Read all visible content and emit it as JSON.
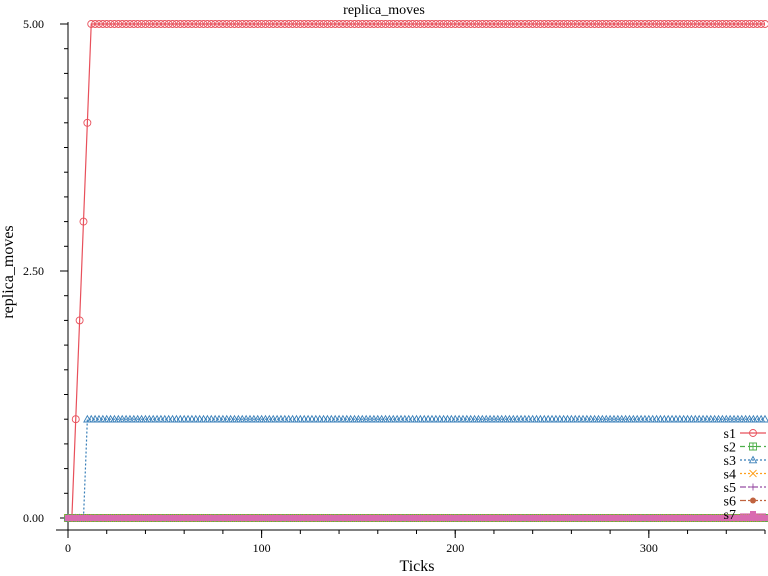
{
  "chart_data": {
    "type": "line",
    "title": "replica_moves",
    "xlabel": "Ticks",
    "ylabel": "replica_moves",
    "xlim": [
      0,
      360
    ],
    "ylim": [
      0,
      5
    ],
    "x_ticks": [
      {
        "value": 0,
        "label": "0"
      },
      {
        "value": 100,
        "label": "100"
      },
      {
        "value": 200,
        "label": "200"
      },
      {
        "value": 300,
        "label": "300"
      }
    ],
    "y_ticks": [
      {
        "value": 0,
        "label": "0.00"
      },
      {
        "value": 2.5,
        "label": "2.50"
      },
      {
        "value": 5,
        "label": "5.00"
      }
    ],
    "legend_position": "bottom-right",
    "series": [
      {
        "name": "s1",
        "color": "#e8505b",
        "marker": "circle",
        "dash": "solid",
        "points": [
          [
            0,
            0
          ],
          [
            2,
            0
          ],
          [
            4,
            1
          ],
          [
            6,
            2
          ],
          [
            8,
            3
          ],
          [
            10,
            4
          ],
          [
            12,
            5
          ],
          [
            360,
            5
          ]
        ]
      },
      {
        "name": "s2",
        "color": "#4daf4a",
        "marker": "square-plus",
        "dash": "dashed",
        "points": [
          [
            0,
            0
          ],
          [
            360,
            0
          ]
        ]
      },
      {
        "name": "s3",
        "color": "#377eb8",
        "marker": "triangle",
        "dash": "dotted",
        "points": [
          [
            0,
            0
          ],
          [
            8,
            0
          ],
          [
            10,
            1
          ],
          [
            360,
            1
          ]
        ]
      },
      {
        "name": "s4",
        "color": "#ff9f1c",
        "marker": "x",
        "dash": "dotted",
        "points": [
          [
            0,
            0
          ],
          [
            360,
            0
          ]
        ]
      },
      {
        "name": "s5",
        "color": "#984ea3",
        "marker": "plus",
        "dash": "dashdot",
        "points": [
          [
            0,
            0
          ],
          [
            360,
            0
          ]
        ]
      },
      {
        "name": "s6",
        "color": "#c0633f",
        "marker": "dot",
        "dash": "dashdot",
        "points": [
          [
            0,
            0
          ],
          [
            360,
            0
          ]
        ]
      },
      {
        "name": "s7",
        "color": "#d96bb0",
        "marker": "square",
        "dash": "solid",
        "points": [
          [
            0,
            0
          ],
          [
            360,
            0
          ]
        ]
      }
    ]
  }
}
